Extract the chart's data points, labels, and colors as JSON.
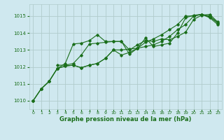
{
  "title": "Graphe pression niveau de la mer (hPa)",
  "bg_color": "#cfe8ef",
  "grid_color": "#b0cccc",
  "line_color": "#1a6e1a",
  "marker_color": "#1a6e1a",
  "xlim": [
    -0.5,
    23.5
  ],
  "ylim": [
    1009.5,
    1015.7
  ],
  "yticks": [
    1010,
    1011,
    1012,
    1013,
    1014,
    1015
  ],
  "xticks": [
    0,
    1,
    2,
    3,
    4,
    5,
    6,
    7,
    8,
    9,
    10,
    11,
    12,
    13,
    14,
    15,
    16,
    17,
    18,
    19,
    20,
    21,
    22,
    23
  ],
  "lines": [
    {
      "x": [
        0,
        1,
        2,
        3,
        4,
        5,
        6,
        7,
        8,
        9,
        10,
        11,
        12,
        13,
        14,
        15,
        16,
        17,
        18,
        19,
        20,
        21,
        22,
        23
      ],
      "y": [
        1010.0,
        1010.7,
        1011.15,
        1011.9,
        1012.2,
        1013.35,
        1013.4,
        1013.55,
        1013.9,
        1013.5,
        1013.5,
        1013.5,
        1012.75,
        1013.1,
        1013.7,
        1013.2,
        1013.3,
        1013.4,
        1014.0,
        1014.9,
        1015.05,
        1015.1,
        1014.95,
        1014.6
      ]
    },
    {
      "x": [
        0,
        1,
        2,
        3,
        4,
        5,
        6,
        7,
        8,
        9,
        10,
        11,
        12,
        13,
        14,
        15,
        16,
        17,
        18,
        19,
        20,
        21,
        22,
        23
      ],
      "y": [
        1010.0,
        1010.7,
        1011.15,
        1011.9,
        1012.05,
        1012.1,
        1011.95,
        1012.1,
        1012.2,
        1012.5,
        1013.0,
        1013.0,
        1013.05,
        1013.1,
        1013.2,
        1013.3,
        1013.5,
        1013.8,
        1014.2,
        1014.5,
        1015.0,
        1015.1,
        1014.9,
        1014.5
      ]
    },
    {
      "x": [
        0,
        1,
        2,
        3,
        4,
        5,
        6,
        7,
        8,
        9,
        10,
        11,
        12,
        13,
        14,
        15,
        16,
        17,
        18,
        19,
        20,
        21,
        22,
        23
      ],
      "y": [
        1010.0,
        1010.7,
        1011.15,
        1011.9,
        1012.05,
        1012.1,
        1011.95,
        1012.1,
        1012.2,
        1012.5,
        1013.0,
        1012.7,
        1012.85,
        1013.1,
        1013.45,
        1013.65,
        1013.9,
        1014.2,
        1014.5,
        1015.0,
        1015.0,
        1015.1,
        1015.0,
        1014.6
      ]
    },
    {
      "x": [
        3,
        4,
        5,
        6,
        7,
        8,
        9,
        10,
        11,
        12,
        13,
        14,
        15,
        16,
        17,
        18,
        19,
        20,
        21,
        22,
        23
      ],
      "y": [
        1012.1,
        1012.1,
        1012.2,
        1012.7,
        1013.35,
        1013.4,
        1013.45,
        1013.5,
        1013.5,
        1013.0,
        1013.3,
        1013.55,
        1013.5,
        1013.65,
        1013.6,
        1013.8,
        1014.05,
        1014.8,
        1015.05,
        1015.1,
        1014.65
      ]
    }
  ]
}
